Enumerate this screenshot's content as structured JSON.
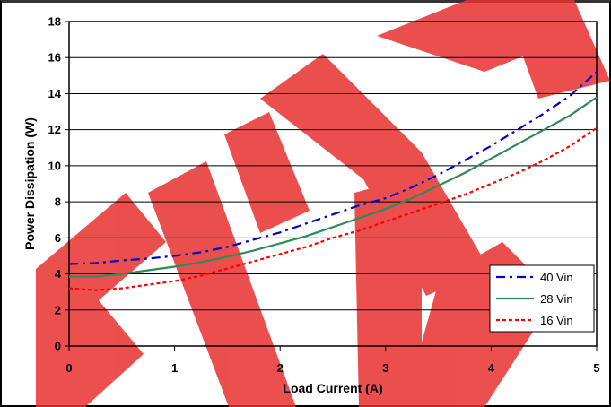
{
  "chart_data": {
    "type": "line",
    "title": "",
    "xlabel": "Load Current (A)",
    "ylabel": "Power Dissipation (W)",
    "xlim": [
      0,
      5
    ],
    "ylim": [
      0,
      18
    ],
    "x_ticks": [
      "0",
      "1",
      "2",
      "3",
      "4",
      "5"
    ],
    "y_ticks": [
      "0",
      "2",
      "4",
      "6",
      "8",
      "10",
      "12",
      "14",
      "16",
      "18"
    ],
    "grid": "horizontal",
    "legend_position": "bottom-right",
    "series": [
      {
        "name": "40 Vin",
        "color": "#0000cc",
        "dash": "dash-dot",
        "x": [
          0,
          0.25,
          0.5,
          0.75,
          1.0,
          1.25,
          1.5,
          1.75,
          2.0,
          2.25,
          2.5,
          2.75,
          3.0,
          3.25,
          3.5,
          3.75,
          4.0,
          4.25,
          4.5,
          4.75,
          5.0
        ],
        "y": [
          4.55,
          4.6,
          4.75,
          4.85,
          5.0,
          5.2,
          5.5,
          5.9,
          6.3,
          6.8,
          7.3,
          7.8,
          8.2,
          8.8,
          9.5,
          10.3,
          11.1,
          12.0,
          12.9,
          13.9,
          15.2
        ]
      },
      {
        "name": "28 Vin",
        "color": "#2e8b57",
        "dash": "solid",
        "x": [
          0,
          0.25,
          0.5,
          0.75,
          1.0,
          1.25,
          1.5,
          1.75,
          2.0,
          2.25,
          2.5,
          2.75,
          3.0,
          3.25,
          3.5,
          3.75,
          4.0,
          4.25,
          4.5,
          4.75,
          5.0
        ],
        "y": [
          3.85,
          3.85,
          4.0,
          4.2,
          4.4,
          4.65,
          4.95,
          5.3,
          5.7,
          6.1,
          6.6,
          7.1,
          7.6,
          8.2,
          8.9,
          9.6,
          10.4,
          11.2,
          12.0,
          12.8,
          13.8
        ]
      },
      {
        "name": "16 Vin",
        "color": "#ff0000",
        "dash": "dotted",
        "x": [
          0,
          0.25,
          0.5,
          0.75,
          1.0,
          1.25,
          1.5,
          1.75,
          2.0,
          2.25,
          2.5,
          2.75,
          3.0,
          3.25,
          3.5,
          3.75,
          4.0,
          4.25,
          4.5,
          4.75,
          5.0
        ],
        "y": [
          3.2,
          3.1,
          3.2,
          3.4,
          3.6,
          3.9,
          4.3,
          4.7,
          5.1,
          5.5,
          6.0,
          6.4,
          6.9,
          7.4,
          7.9,
          8.4,
          9.0,
          9.6,
          10.3,
          11.1,
          12.1
        ]
      }
    ]
  },
  "watermark": {
    "color": "#e8312f"
  }
}
